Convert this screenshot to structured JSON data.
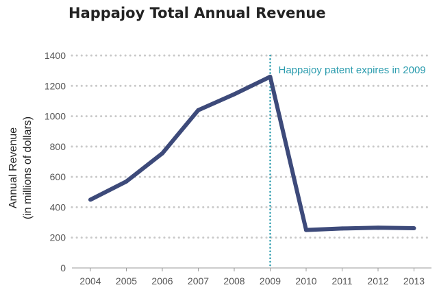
{
  "chart_data": {
    "type": "line",
    "title": "Happajoy Total Annual Revenue",
    "xlabel": "",
    "ylabel_line1": "Annual Revenue",
    "ylabel_line2": "(in millions of dollars)",
    "x": [
      "2004",
      "2005",
      "2006",
      "2007",
      "2008",
      "2009",
      "2010",
      "2011",
      "2012",
      "2013"
    ],
    "series": [
      {
        "values": [
          450,
          570,
          755,
          1040,
          1145,
          1260,
          250,
          260,
          265,
          262
        ]
      }
    ],
    "ylim": [
      0,
      1400
    ],
    "yticks": [
      0,
      200,
      400,
      600,
      800,
      1000,
      1200,
      1400
    ],
    "grid": true,
    "annotation": {
      "x": "2009",
      "text": "Happajoy patent expires in 2009"
    },
    "colors": {
      "line": "#3d4a7a",
      "annotation": "#2b9cae",
      "grid": "#c9c9c9",
      "axis": "#999999"
    }
  }
}
